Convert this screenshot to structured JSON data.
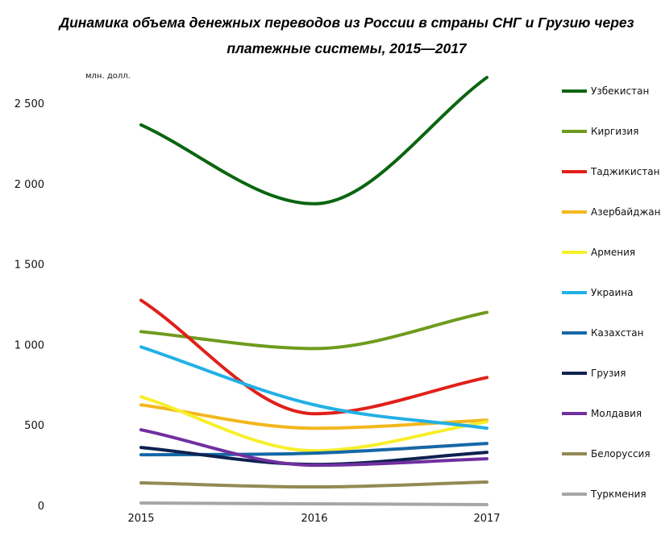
{
  "chart_data": {
    "type": "line",
    "title_line1": "Динамика объема денежных переводов из России в страны СНГ и Грузию через",
    "title_line2": "платежные системы, 2015—2017",
    "ylabel": "млн. долл.",
    "x": [
      "2015",
      "2016",
      "2017"
    ],
    "ylim": [
      0,
      2500
    ],
    "yticks": [
      0,
      500,
      1000,
      1500,
      2000,
      2500
    ],
    "ytick_labels": [
      "0",
      "500",
      "1 000",
      "1 500",
      "2 000",
      "2 500"
    ],
    "legend_position": "right",
    "grid": false,
    "series": [
      {
        "name": "Узбекистан",
        "color": "#0b6510",
        "values": [
          2365,
          1875,
          2660
        ]
      },
      {
        "name": "Киргизия",
        "color": "#6e9b1e",
        "values": [
          1080,
          975,
          1200
        ]
      },
      {
        "name": "Таджикистан",
        "color": "#e0201a",
        "values": [
          1275,
          570,
          795
        ]
      },
      {
        "name": "Азербайджан",
        "color": "#f2b71c",
        "values": [
          625,
          480,
          530
        ]
      },
      {
        "name": "Армения",
        "color": "#f7ef2a",
        "values": [
          675,
          340,
          520
        ]
      },
      {
        "name": "Украина",
        "color": "#22b0e6",
        "values": [
          985,
          625,
          480
        ]
      },
      {
        "name": "Казахстан",
        "color": "#1567a7",
        "values": [
          315,
          325,
          385
        ]
      },
      {
        "name": "Грузия",
        "color": "#0e2150",
        "values": [
          360,
          255,
          330
        ]
      },
      {
        "name": "Молдавия",
        "color": "#7030a0",
        "values": [
          470,
          250,
          290
        ]
      },
      {
        "name": "Белоруссия",
        "color": "#938953",
        "values": [
          140,
          115,
          145
        ]
      },
      {
        "name": "Туркмения",
        "color": "#a6a6a6",
        "values": [
          15,
          10,
          5
        ]
      }
    ]
  }
}
